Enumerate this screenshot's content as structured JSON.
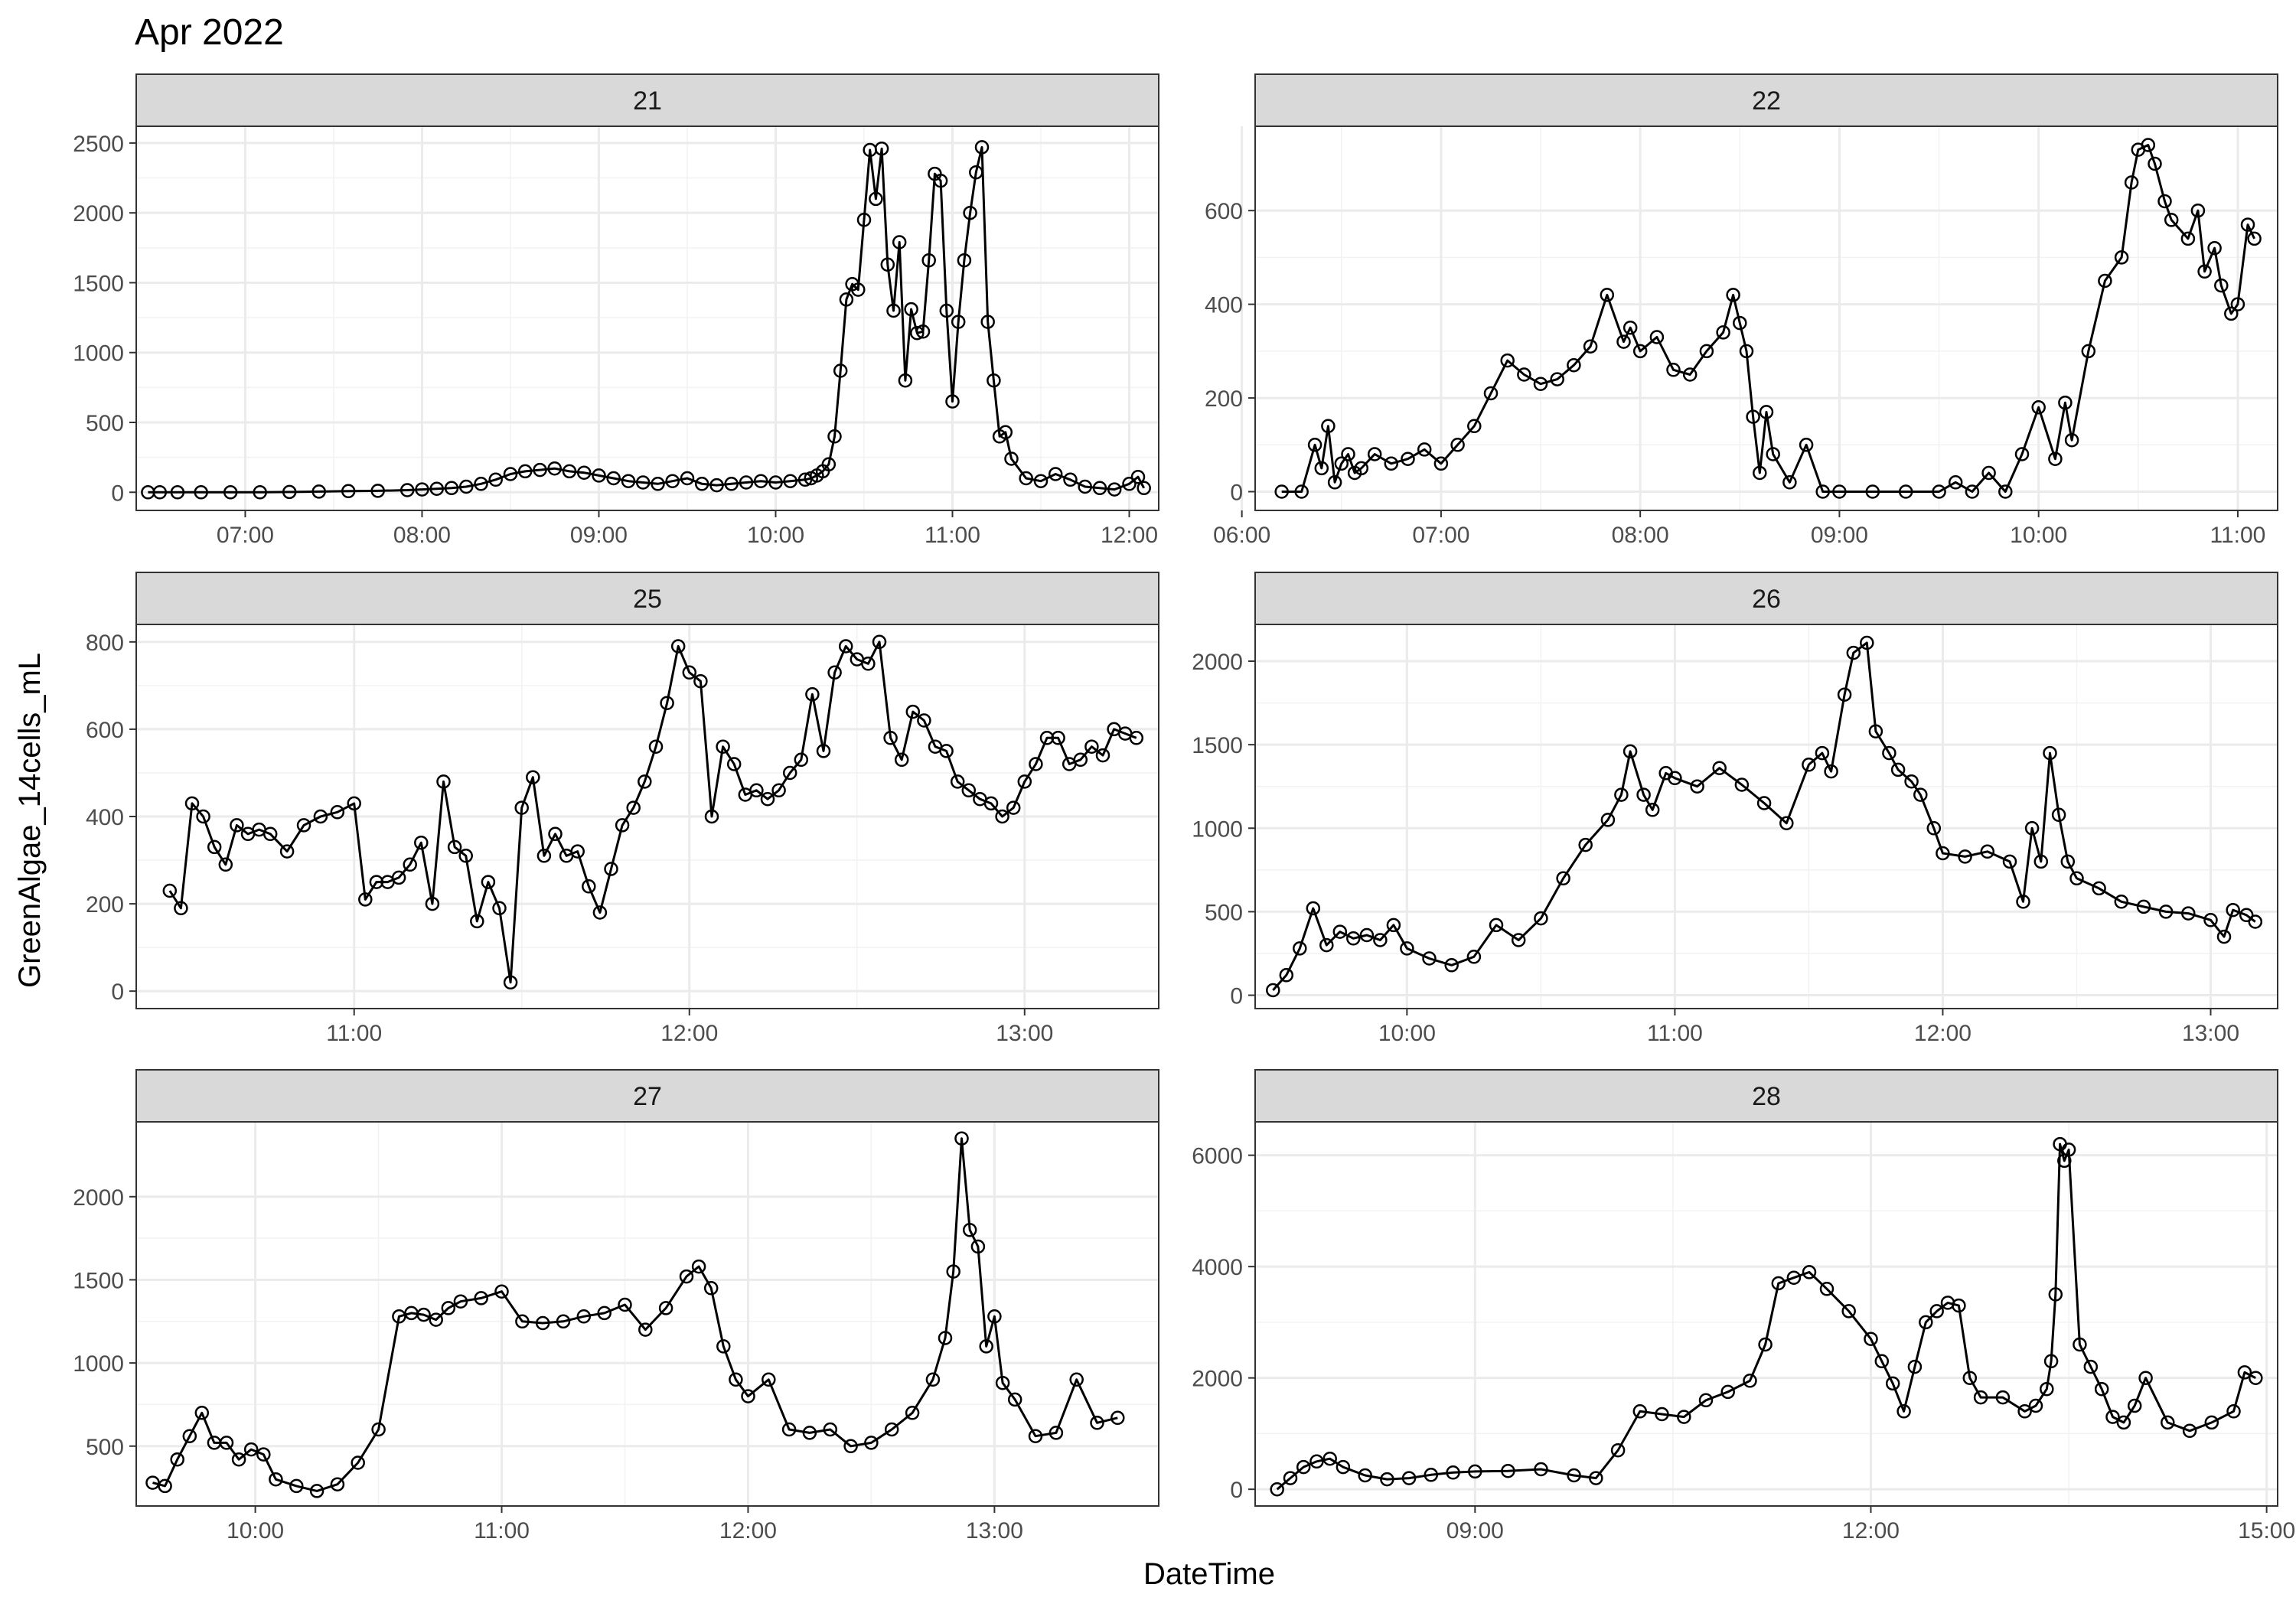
{
  "chart_data": {
    "type": "line",
    "title": "Apr 2022",
    "xlabel": "DateTime",
    "ylabel": "GreenAlgae_14cells_mL",
    "grid": true,
    "legend": "none",
    "layout": "facet_wrap 3 rows x 2 cols, free scales",
    "colors": {
      "line": "#000000",
      "strip_fill": "#d9d9d9",
      "panel_border": "#333333",
      "grid": "#ebebeb"
    },
    "panels": [
      {
        "strip": "21",
        "xlim": [
          "06:23",
          "12:10"
        ],
        "ylim": [
          -130,
          2620
        ],
        "xticks": [
          "07:00",
          "08:00",
          "09:00",
          "10:00",
          "11:00",
          "12:00"
        ],
        "yticks": [
          0,
          500,
          1000,
          1500,
          2000,
          2500
        ],
        "x": [
          "06:27",
          "06:31",
          "06:37",
          "06:45",
          "06:55",
          "07:05",
          "07:15",
          "07:25",
          "07:35",
          "07:45",
          "07:55",
          "08:00",
          "08:05",
          "08:10",
          "08:15",
          "08:20",
          "08:25",
          "08:30",
          "08:35",
          "08:40",
          "08:45",
          "08:50",
          "08:55",
          "09:00",
          "09:05",
          "09:10",
          "09:15",
          "09:20",
          "09:25",
          "09:30",
          "09:35",
          "09:40",
          "09:45",
          "09:50",
          "09:55",
          "10:00",
          "10:05",
          "10:10",
          "10:12",
          "10:14",
          "10:16",
          "10:18",
          "10:20",
          "10:22",
          "10:24",
          "10:26",
          "10:28",
          "10:30",
          "10:32",
          "10:34",
          "10:36",
          "10:38",
          "10:40",
          "10:42",
          "10:44",
          "10:46",
          "10:48",
          "10:50",
          "10:52",
          "10:54",
          "10:56",
          "10:58",
          "11:00",
          "11:02",
          "11:04",
          "11:06",
          "11:08",
          "11:10",
          "11:12",
          "11:14",
          "11:16",
          "11:18",
          "11:20",
          "11:25",
          "11:30",
          "11:35",
          "11:40",
          "11:45",
          "11:50",
          "11:55",
          "12:00",
          "12:03",
          "12:05"
        ],
        "y": [
          0,
          0,
          0,
          0,
          0,
          0,
          2,
          5,
          8,
          10,
          15,
          20,
          25,
          30,
          40,
          60,
          90,
          130,
          150,
          160,
          170,
          150,
          140,
          120,
          100,
          80,
          70,
          60,
          80,
          100,
          60,
          50,
          60,
          70,
          80,
          70,
          80,
          90,
          100,
          120,
          150,
          200,
          400,
          870,
          1380,
          1490,
          1450,
          1950,
          2450,
          2100,
          2460,
          1630,
          1300,
          1790,
          800,
          1310,
          1140,
          1150,
          1660,
          2280,
          2230,
          1300,
          650,
          1220,
          1660,
          2000,
          2290,
          2470,
          1220,
          800,
          400,
          430,
          240,
          100,
          80,
          130,
          90,
          40,
          30,
          20,
          60,
          110,
          30
        ]
      },
      {
        "strip": "22",
        "xlim": [
          "06:04",
          "11:12"
        ],
        "ylim": [
          -40,
          780
        ],
        "xticks": [
          "06:00",
          "07:00",
          "08:00",
          "09:00",
          "10:00",
          "11:00"
        ],
        "yticks": [
          0,
          200,
          400,
          600
        ],
        "x": [
          "06:12",
          "06:18",
          "06:22",
          "06:24",
          "06:26",
          "06:28",
          "06:30",
          "06:32",
          "06:34",
          "06:36",
          "06:40",
          "06:45",
          "06:50",
          "06:55",
          "07:00",
          "07:05",
          "07:10",
          "07:15",
          "07:20",
          "07:25",
          "07:30",
          "07:35",
          "07:40",
          "07:45",
          "07:50",
          "07:55",
          "07:57",
          "08:00",
          "08:05",
          "08:10",
          "08:15",
          "08:20",
          "08:25",
          "08:28",
          "08:30",
          "08:32",
          "08:34",
          "08:36",
          "08:38",
          "08:40",
          "08:45",
          "08:50",
          "08:55",
          "09:00",
          "09:10",
          "09:20",
          "09:30",
          "09:35",
          "09:40",
          "09:45",
          "09:50",
          "09:55",
          "10:00",
          "10:05",
          "10:08",
          "10:10",
          "10:15",
          "10:20",
          "10:25",
          "10:28",
          "10:30",
          "10:33",
          "10:35",
          "10:38",
          "10:40",
          "10:45",
          "10:48",
          "10:50",
          "10:53",
          "10:55",
          "10:58",
          "11:00",
          "11:03",
          "11:05"
        ],
        "y": [
          0,
          0,
          100,
          50,
          140,
          20,
          60,
          80,
          40,
          50,
          80,
          60,
          70,
          90,
          60,
          100,
          140,
          210,
          280,
          250,
          230,
          240,
          270,
          310,
          420,
          320,
          350,
          300,
          330,
          260,
          250,
          300,
          340,
          420,
          360,
          300,
          160,
          40,
          170,
          80,
          20,
          100,
          0,
          0,
          0,
          0,
          0,
          20,
          0,
          40,
          0,
          80,
          180,
          70,
          190,
          110,
          300,
          450,
          500,
          660,
          730,
          740,
          700,
          620,
          580,
          540,
          600,
          470,
          520,
          440,
          380,
          400,
          570,
          540
        ]
      },
      {
        "strip": "25",
        "xlim": [
          "10:21",
          "13:24"
        ],
        "ylim": [
          -40,
          840
        ],
        "xticks": [
          "11:00",
          "12:00",
          "13:00"
        ],
        "yticks": [
          0,
          200,
          400,
          600,
          800
        ],
        "x": [
          "10:27",
          "10:29",
          "10:31",
          "10:33",
          "10:35",
          "10:37",
          "10:39",
          "10:41",
          "10:43",
          "10:45",
          "10:48",
          "10:51",
          "10:54",
          "10:57",
          "11:00",
          "11:02",
          "11:04",
          "11:06",
          "11:08",
          "11:10",
          "11:12",
          "11:14",
          "11:16",
          "11:18",
          "11:20",
          "11:22",
          "11:24",
          "11:26",
          "11:28",
          "11:30",
          "11:32",
          "11:34",
          "11:36",
          "11:38",
          "11:40",
          "11:42",
          "11:44",
          "11:46",
          "11:48",
          "11:50",
          "11:52",
          "11:54",
          "11:56",
          "11:58",
          "12:00",
          "12:02",
          "12:04",
          "12:06",
          "12:08",
          "12:10",
          "12:12",
          "12:14",
          "12:16",
          "12:18",
          "12:20",
          "12:22",
          "12:24",
          "12:26",
          "12:28",
          "12:30",
          "12:32",
          "12:34",
          "12:36",
          "12:38",
          "12:40",
          "12:42",
          "12:44",
          "12:46",
          "12:48",
          "12:50",
          "12:52",
          "12:54",
          "12:56",
          "12:58",
          "13:00",
          "13:02",
          "13:04",
          "13:06",
          "13:08",
          "13:10",
          "13:12",
          "13:14",
          "13:16",
          "13:18",
          "13:20"
        ],
        "y": [
          230,
          190,
          430,
          400,
          330,
          290,
          380,
          360,
          370,
          360,
          320,
          380,
          400,
          410,
          430,
          210,
          250,
          250,
          260,
          290,
          340,
          200,
          480,
          330,
          310,
          160,
          250,
          190,
          20,
          420,
          490,
          310,
          360,
          310,
          320,
          240,
          180,
          280,
          380,
          420,
          480,
          560,
          660,
          790,
          730,
          710,
          400,
          560,
          520,
          450,
          460,
          440,
          460,
          500,
          530,
          680,
          550,
          730,
          790,
          760,
          750,
          800,
          580,
          530,
          640,
          620,
          560,
          550,
          480,
          460,
          440,
          430,
          400,
          420,
          480,
          520,
          580,
          580,
          520,
          530,
          560,
          540,
          600,
          590,
          580
        ]
      },
      {
        "strip": "26",
        "xlim": [
          "09:26",
          "13:15"
        ],
        "ylim": [
          -80,
          2220
        ],
        "xticks": [
          "10:00",
          "11:00",
          "12:00",
          "13:00"
        ],
        "yticks": [
          0,
          500,
          1000,
          1500,
          2000
        ],
        "x": [
          "09:30",
          "09:33",
          "09:36",
          "09:39",
          "09:42",
          "09:45",
          "09:48",
          "09:51",
          "09:54",
          "09:57",
          "10:00",
          "10:05",
          "10:10",
          "10:15",
          "10:20",
          "10:25",
          "10:30",
          "10:35",
          "10:40",
          "10:45",
          "10:48",
          "10:50",
          "10:53",
          "10:55",
          "10:58",
          "11:00",
          "11:05",
          "11:10",
          "11:15",
          "11:20",
          "11:25",
          "11:30",
          "11:33",
          "11:35",
          "11:38",
          "11:40",
          "11:43",
          "11:45",
          "11:48",
          "11:50",
          "11:53",
          "11:55",
          "11:58",
          "12:00",
          "12:05",
          "12:10",
          "12:15",
          "12:18",
          "12:20",
          "12:22",
          "12:24",
          "12:26",
          "12:28",
          "12:30",
          "12:35",
          "12:40",
          "12:45",
          "12:50",
          "12:55",
          "13:00",
          "13:03",
          "13:05",
          "13:08",
          "13:10"
        ],
        "y": [
          30,
          120,
          280,
          520,
          300,
          380,
          340,
          360,
          330,
          420,
          280,
          220,
          180,
          230,
          420,
          330,
          460,
          700,
          900,
          1050,
          1200,
          1460,
          1200,
          1110,
          1330,
          1300,
          1250,
          1360,
          1260,
          1150,
          1030,
          1380,
          1450,
          1340,
          1800,
          2050,
          2110,
          1580,
          1450,
          1350,
          1280,
          1200,
          1000,
          850,
          830,
          860,
          800,
          560,
          1000,
          800,
          1450,
          1080,
          800,
          700,
          640,
          560,
          530,
          500,
          490,
          450,
          350,
          510,
          480,
          440
        ]
      },
      {
        "strip": "27",
        "xlim": [
          "09:31",
          "13:40"
        ],
        "ylim": [
          140,
          2450
        ],
        "xticks": [
          "10:00",
          "11:00",
          "12:00",
          "13:00"
        ],
        "yticks": [
          500,
          1000,
          1500,
          2000
        ],
        "x": [
          "09:35",
          "09:38",
          "09:41",
          "09:44",
          "09:47",
          "09:50",
          "09:53",
          "09:56",
          "09:59",
          "10:02",
          "10:05",
          "10:10",
          "10:15",
          "10:20",
          "10:25",
          "10:30",
          "10:35",
          "10:38",
          "10:41",
          "10:44",
          "10:47",
          "10:50",
          "10:55",
          "11:00",
          "11:05",
          "11:10",
          "11:15",
          "11:20",
          "11:25",
          "11:30",
          "11:35",
          "11:40",
          "11:45",
          "11:48",
          "11:51",
          "11:54",
          "11:57",
          "12:00",
          "12:05",
          "12:10",
          "12:15",
          "12:20",
          "12:25",
          "12:30",
          "12:35",
          "12:40",
          "12:45",
          "12:48",
          "12:50",
          "12:52",
          "12:54",
          "12:56",
          "12:58",
          "13:00",
          "13:02",
          "13:05",
          "13:10",
          "13:15",
          "13:20",
          "13:25",
          "13:30"
        ],
        "y": [
          280,
          260,
          420,
          560,
          700,
          520,
          520,
          420,
          480,
          450,
          300,
          260,
          230,
          270,
          400,
          600,
          1280,
          1300,
          1290,
          1260,
          1330,
          1370,
          1390,
          1430,
          1250,
          1240,
          1250,
          1280,
          1300,
          1350,
          1200,
          1330,
          1520,
          1580,
          1450,
          1100,
          900,
          800,
          900,
          600,
          580,
          600,
          500,
          520,
          600,
          700,
          900,
          1150,
          1550,
          2350,
          1800,
          1700,
          1100,
          1280,
          880,
          780,
          560,
          580,
          900,
          640,
          670
        ]
      },
      {
        "strip": "28",
        "xlim": [
          "07:20",
          "15:05"
        ],
        "ylim": [
          -300,
          6600
        ],
        "xticks": [
          "09:00",
          "12:00",
          "15:00"
        ],
        "yticks": [
          0,
          2000,
          4000,
          6000
        ],
        "x": [
          "07:30",
          "07:36",
          "07:42",
          "07:48",
          "07:54",
          "08:00",
          "08:10",
          "08:20",
          "08:30",
          "08:40",
          "08:50",
          "09:00",
          "09:15",
          "09:30",
          "09:45",
          "09:55",
          "10:05",
          "10:15",
          "10:25",
          "10:35",
          "10:45",
          "10:55",
          "11:05",
          "11:12",
          "11:18",
          "11:25",
          "11:32",
          "11:40",
          "11:50",
          "12:00",
          "12:05",
          "12:10",
          "12:15",
          "12:20",
          "12:25",
          "12:30",
          "12:35",
          "12:40",
          "12:45",
          "12:50",
          "13:00",
          "13:10",
          "13:15",
          "13:20",
          "13:22",
          "13:24",
          "13:26",
          "13:28",
          "13:30",
          "13:35",
          "13:40",
          "13:45",
          "13:50",
          "13:55",
          "14:00",
          "14:05",
          "14:15",
          "14:25",
          "14:35",
          "14:45",
          "14:50",
          "14:55"
        ],
        "y": [
          0,
          200,
          400,
          500,
          550,
          400,
          250,
          180,
          200,
          260,
          300,
          320,
          330,
          360,
          250,
          200,
          700,
          1400,
          1350,
          1300,
          1600,
          1750,
          1950,
          2600,
          3700,
          3800,
          3900,
          3600,
          3200,
          2700,
          2300,
          1900,
          1400,
          2200,
          3000,
          3200,
          3350,
          3300,
          2000,
          1650,
          1650,
          1400,
          1500,
          1800,
          2300,
          3500,
          6200,
          5900,
          6100,
          2600,
          2200,
          1800,
          1300,
          1200,
          1500,
          2000,
          1200,
          1050,
          1200,
          1400,
          2100,
          2000
        ]
      }
    ]
  }
}
